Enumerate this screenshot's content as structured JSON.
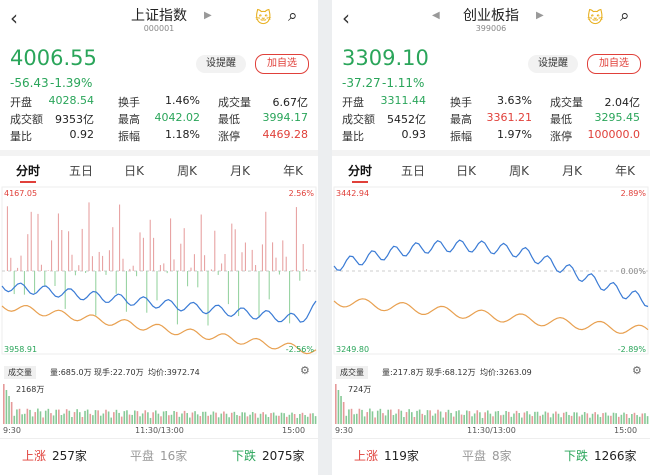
{
  "panels": [
    {
      "name": "上证指数",
      "code": "000001",
      "price": "4006.55",
      "change": "-56.43",
      "change_pct": "-1.39%",
      "price_color": "#2aa55a",
      "buttons": [
        "设提醒",
        "加自选"
      ],
      "stats": [
        {
          "label": "开盘",
          "value": "4028.54",
          "color": "#2aa55a"
        },
        {
          "label": "换手",
          "value": "1.46%",
          "color": "#222222"
        },
        {
          "label": "成交量",
          "value": "6.67亿",
          "color": "#222222"
        },
        {
          "label": "成交额",
          "value": "9353亿",
          "color": "#222222"
        },
        {
          "label": "最高",
          "value": "4042.02",
          "color": "#2aa55a"
        },
        {
          "label": "最低",
          "value": "3994.17",
          "color": "#2aa55a"
        },
        {
          "label": "量比",
          "value": "0.92",
          "color": "#222222"
        },
        {
          "label": "振幅",
          "value": "1.18%",
          "color": "#222222"
        },
        {
          "label": "涨停",
          "value": "4469.28",
          "color": "#e0403a"
        }
      ],
      "tabs": [
        "分时",
        "五日",
        "日K",
        "周K",
        "月K",
        "年K"
      ],
      "axis": {
        "top": "4167.05",
        "top_pct": "2.56%",
        "bottom": "3958.91",
        "bottom_pct": "-2.56%"
      },
      "volume": {
        "selector": "成交量",
        "amount": "量:685.0万",
        "hand": "现手:22.70万",
        "avg": "均价:3972.74",
        "max": "2168万"
      },
      "times": [
        "9:30",
        "11:30/13:00",
        "15:00"
      ],
      "footer": [
        {
          "label": "上涨",
          "count": "257家"
        },
        {
          "label": "平盘",
          "count": "16家"
        },
        {
          "label": "下跌",
          "count": "2075家"
        }
      ]
    },
    {
      "name": "创业板指",
      "code": "399006",
      "price": "3309.10",
      "change": "-37.27",
      "change_pct": "-1.11%",
      "price_color": "#2aa55a",
      "buttons": [
        "设提醒",
        "加自选"
      ],
      "stats": [
        {
          "label": "开盘",
          "value": "3311.44",
          "color": "#2aa55a"
        },
        {
          "label": "换手",
          "value": "3.63%",
          "color": "#222222"
        },
        {
          "label": "成交量",
          "value": "2.04亿",
          "color": "#222222"
        },
        {
          "label": "成交额",
          "value": "5452亿",
          "color": "#222222"
        },
        {
          "label": "最高",
          "value": "3361.21",
          "color": "#e0403a"
        },
        {
          "label": "最低",
          "value": "3295.45",
          "color": "#2aa55a"
        },
        {
          "label": "量比",
          "value": "0.93",
          "color": "#222222"
        },
        {
          "label": "振幅",
          "value": "1.97%",
          "color": "#222222"
        },
        {
          "label": "涨停",
          "value": "100000.0",
          "color": "#e0403a"
        }
      ],
      "tabs": [
        "分时",
        "五日",
        "日K",
        "周K",
        "月K",
        "年K"
      ],
      "axis": {
        "top": "3442.94",
        "top_pct": "2.89%",
        "mid_pct": "0.00%",
        "bottom": "3249.80",
        "bottom_pct": "-2.89%"
      },
      "volume": {
        "selector": "成交量",
        "amount": "量:217.8万",
        "hand": "现手:68.12万",
        "avg": "均价:3263.09",
        "max": "724万"
      },
      "times": [
        "9:30",
        "11:30/13:00",
        "15:00"
      ],
      "footer": [
        {
          "label": "上涨",
          "count": "119家"
        },
        {
          "label": "平盘",
          "count": "8家"
        },
        {
          "label": "下跌",
          "count": "1266家"
        }
      ]
    }
  ]
}
